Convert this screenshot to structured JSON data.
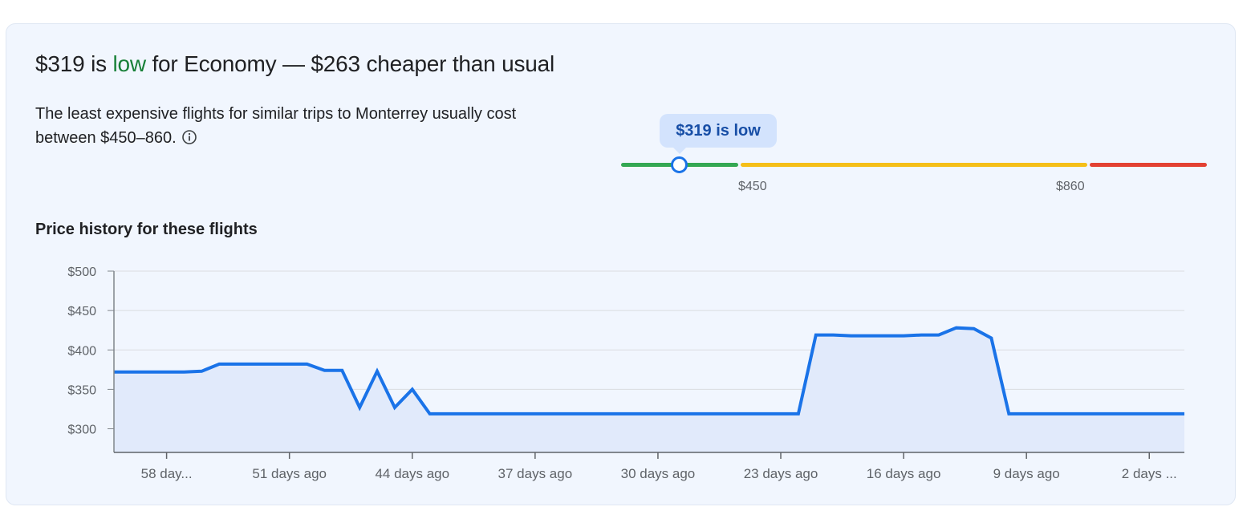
{
  "summary": {
    "price": "$319 is ",
    "level": "low",
    "rest": " for Economy — $263 cheaper than usual",
    "description": "The least expensive flights for similar trips to Monterrey usually cost between $450–860.",
    "info_icon": "info-icon"
  },
  "price_range": {
    "tooltip": "$319 is low",
    "low_label": "$450",
    "high_label": "$860",
    "current_price": 319,
    "colors": {
      "low": "#34a853",
      "typical": "#f5bf18",
      "high": "#e34133"
    }
  },
  "history": {
    "title": "Price history for these flights"
  },
  "chart_data": {
    "type": "area",
    "x_days_ago": [
      61,
      60,
      59,
      58,
      57,
      56,
      55,
      54,
      53,
      52,
      51,
      50,
      49,
      48,
      47,
      46,
      45,
      44,
      43,
      42,
      41,
      40,
      39,
      38,
      37,
      36,
      35,
      34,
      33,
      32,
      31,
      30,
      29,
      28,
      27,
      26,
      25,
      24,
      23,
      22,
      21,
      20,
      19,
      18,
      17,
      16,
      15,
      14,
      13,
      12,
      11,
      10,
      9,
      8,
      7,
      6,
      5,
      4,
      3,
      2,
      1,
      0
    ],
    "values": [
      372,
      372,
      372,
      372,
      372,
      373,
      382,
      382,
      382,
      382,
      382,
      382,
      374,
      374,
      327,
      373,
      327,
      350,
      319,
      319,
      319,
      319,
      319,
      319,
      319,
      319,
      319,
      319,
      319,
      319,
      319,
      319,
      319,
      319,
      319,
      319,
      319,
      319,
      319,
      319,
      419,
      419,
      418,
      418,
      418,
      418,
      419,
      419,
      428,
      427,
      415,
      319,
      319,
      319,
      319,
      319,
      319,
      319,
      319,
      319,
      319,
      319
    ],
    "ylim": [
      270,
      500
    ],
    "y_ticks": [
      300,
      350,
      400,
      450,
      500
    ],
    "y_tick_labels": [
      "$300",
      "$350",
      "$400",
      "$450",
      "$500"
    ],
    "x_ticks": [
      58,
      51,
      44,
      37,
      30,
      23,
      16,
      9,
      2
    ],
    "x_tick_labels": [
      "58 day...",
      "51 days ago",
      "44 days ago",
      "37 days ago",
      "30 days ago",
      "23 days ago",
      "16 days ago",
      "9 days ago",
      "2 days ..."
    ],
    "line_color": "#1a73e8",
    "fill_color": "#e1eafb",
    "grid": true
  }
}
